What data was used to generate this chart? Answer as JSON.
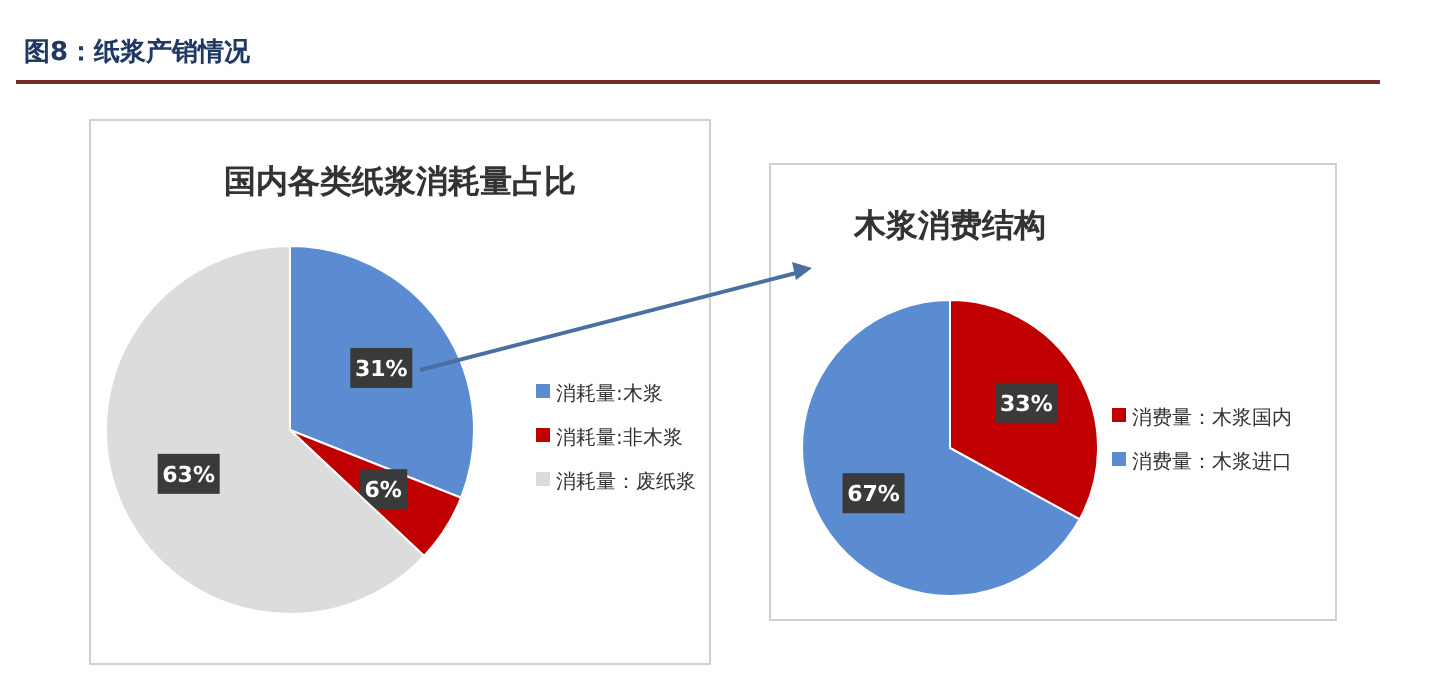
{
  "chart_data": [
    {
      "type": "pie",
      "title": "国内各类纸浆消耗量占比",
      "annotations": [
        "图8：纸浆产销情况"
      ],
      "categories": [
        "消耗量:木浆",
        "消耗量:非木浆",
        "消耗量：废纸浆"
      ],
      "values": [
        31,
        6,
        63
      ],
      "colors": [
        "#5b8bd0",
        "#c00000",
        "#dcdcdc"
      ],
      "value_labels": [
        "31%",
        "6%",
        "63%"
      ],
      "legend": "right"
    },
    {
      "type": "pie",
      "title": "木浆消费结构",
      "categories": [
        "消费量：木浆国内",
        "消费量：木浆进口"
      ],
      "values": [
        33,
        67
      ],
      "colors": [
        "#c00000",
        "#5b8bd0"
      ],
      "value_labels": [
        "33%",
        "67%"
      ],
      "legend": "right"
    }
  ]
}
